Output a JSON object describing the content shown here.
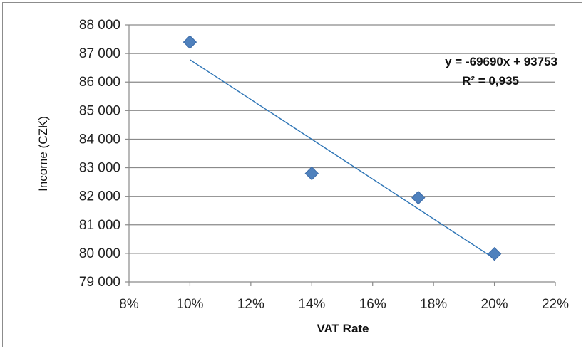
{
  "chart_data": {
    "type": "scatter",
    "title": "",
    "xlabel": "VAT Rate",
    "ylabel": "Income (CZK)",
    "xlim": [
      0.08,
      0.22
    ],
    "ylim": [
      79000,
      88000
    ],
    "x_ticks": [
      0.08,
      0.1,
      0.12,
      0.14,
      0.16,
      0.18,
      0.2,
      0.22
    ],
    "x_tick_labels": [
      "8%",
      "10%",
      "12%",
      "14%",
      "16%",
      "18%",
      "20%",
      "22%"
    ],
    "y_ticks": [
      79000,
      80000,
      81000,
      82000,
      83000,
      84000,
      85000,
      86000,
      87000,
      88000
    ],
    "y_tick_labels": [
      "79 000",
      "80 000",
      "81 000",
      "82 000",
      "83 000",
      "84 000",
      "85 000",
      "86 000",
      "87 000",
      "88 000"
    ],
    "grid": "horizontal",
    "series": [
      {
        "points": [
          {
            "x": 0.1,
            "y": 87400
          },
          {
            "x": 0.14,
            "y": 82800
          },
          {
            "x": 0.175,
            "y": 81950
          },
          {
            "x": 0.2,
            "y": 79980
          }
        ],
        "color": "#4f81bd",
        "marker": "diamond"
      }
    ],
    "trendline": {
      "type": "linear",
      "slope": -69690,
      "intercept": 93753,
      "x_range": [
        0.1,
        0.2
      ],
      "color": "#2e75b6",
      "equation_label": "y = -69690x + 93753",
      "r2_label": "R² = 0,935"
    }
  }
}
